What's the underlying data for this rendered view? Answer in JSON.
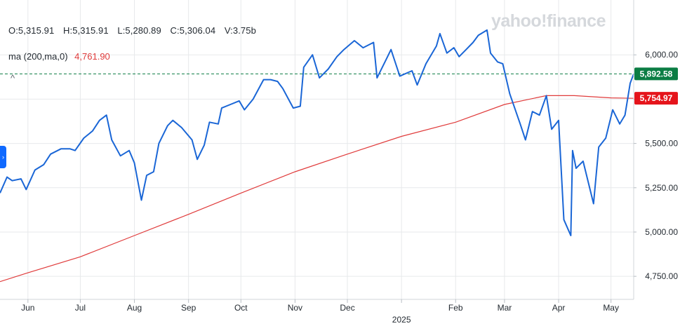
{
  "ohlc": {
    "open": "O:5,315.91",
    "high": "H:5,315.91",
    "low": "L:5,280.89",
    "close": "C:5,306.04",
    "volume": "V:3.75b"
  },
  "indicator": {
    "label": "ma (200,ma,0)",
    "value": "4,761.90"
  },
  "controls": {
    "collapse": "^",
    "side_tab": "›"
  },
  "watermark": "yahoo!finance",
  "last_price_badge": "5,892.58",
  "ma_badge": "5,754.97",
  "colors": {
    "price": "#1a66d6",
    "ma": "#e03b3b",
    "last_badge": "#0b7d44",
    "ma_badge": "#e5141b",
    "grid": "#e7e9eb"
  },
  "chart_data": {
    "type": "line",
    "title": "",
    "xlabel": "",
    "ylabel": "",
    "ylim": [
      4620,
      6270
    ],
    "y_ticks": [
      4750,
      5000,
      5250,
      5500,
      5750,
      6000
    ],
    "y_tick_labels": [
      "4,750.00",
      "5,000.00",
      "5,250.00",
      "5,500.00",
      "5,750.00",
      "6,000.00"
    ],
    "x_range": [
      "2024-05-16",
      "2025-05-14"
    ],
    "x_ticks": [
      {
        "date": "2024-06-01",
        "label": "Jun"
      },
      {
        "date": "2024-07-01",
        "label": "Jul"
      },
      {
        "date": "2024-08-01",
        "label": "Aug"
      },
      {
        "date": "2024-09-01",
        "label": "Sep"
      },
      {
        "date": "2024-10-01",
        "label": "Oct"
      },
      {
        "date": "2024-11-01",
        "label": "Nov"
      },
      {
        "date": "2024-12-01",
        "label": "Dec"
      },
      {
        "date": "2025-01-01",
        "label": "2025"
      },
      {
        "date": "2025-02-01",
        "label": "Feb"
      },
      {
        "date": "2025-03-01",
        "label": "Mar"
      },
      {
        "date": "2025-04-01",
        "label": "Apr"
      },
      {
        "date": "2025-05-01",
        "label": "May"
      }
    ],
    "reference_line": 5892.58,
    "series": [
      {
        "name": "",
        "color": "#1a66d6",
        "points": [
          [
            "2024-05-16",
            5220
          ],
          [
            "2024-05-20",
            5310
          ],
          [
            "2024-05-23",
            5290
          ],
          [
            "2024-05-28",
            5300
          ],
          [
            "2024-05-31",
            5240
          ],
          [
            "2024-06-05",
            5350
          ],
          [
            "2024-06-10",
            5380
          ],
          [
            "2024-06-14",
            5440
          ],
          [
            "2024-06-20",
            5470
          ],
          [
            "2024-06-25",
            5470
          ],
          [
            "2024-06-28",
            5460
          ],
          [
            "2024-07-03",
            5530
          ],
          [
            "2024-07-08",
            5570
          ],
          [
            "2024-07-12",
            5630
          ],
          [
            "2024-07-16",
            5660
          ],
          [
            "2024-07-19",
            5520
          ],
          [
            "2024-07-24",
            5430
          ],
          [
            "2024-07-29",
            5460
          ],
          [
            "2024-08-01",
            5390
          ],
          [
            "2024-08-05",
            5180
          ],
          [
            "2024-08-08",
            5320
          ],
          [
            "2024-08-12",
            5340
          ],
          [
            "2024-08-15",
            5500
          ],
          [
            "2024-08-20",
            5600
          ],
          [
            "2024-08-23",
            5630
          ],
          [
            "2024-08-28",
            5590
          ],
          [
            "2024-09-03",
            5520
          ],
          [
            "2024-09-06",
            5410
          ],
          [
            "2024-09-10",
            5490
          ],
          [
            "2024-09-13",
            5620
          ],
          [
            "2024-09-18",
            5610
          ],
          [
            "2024-09-20",
            5700
          ],
          [
            "2024-09-25",
            5720
          ],
          [
            "2024-09-30",
            5740
          ],
          [
            "2024-10-03",
            5690
          ],
          [
            "2024-10-08",
            5750
          ],
          [
            "2024-10-14",
            5860
          ],
          [
            "2024-10-18",
            5860
          ],
          [
            "2024-10-22",
            5850
          ],
          [
            "2024-10-25",
            5810
          ],
          [
            "2024-10-31",
            5700
          ],
          [
            "2024-11-04",
            5710
          ],
          [
            "2024-11-06",
            5930
          ],
          [
            "2024-11-11",
            6000
          ],
          [
            "2024-11-15",
            5870
          ],
          [
            "2024-11-20",
            5920
          ],
          [
            "2024-11-25",
            5990
          ],
          [
            "2024-11-29",
            6030
          ],
          [
            "2024-12-05",
            6080
          ],
          [
            "2024-12-10",
            6040
          ],
          [
            "2024-12-16",
            6070
          ],
          [
            "2024-12-18",
            5870
          ],
          [
            "2024-12-23",
            5970
          ],
          [
            "2024-12-26",
            6030
          ],
          [
            "2024-12-31",
            5880
          ],
          [
            "2025-01-07",
            5910
          ],
          [
            "2025-01-10",
            5830
          ],
          [
            "2025-01-15",
            5950
          ],
          [
            "2025-01-21",
            6050
          ],
          [
            "2025-01-23",
            6120
          ],
          [
            "2025-01-27",
            6010
          ],
          [
            "2025-01-31",
            6040
          ],
          [
            "2025-02-03",
            5990
          ],
          [
            "2025-02-07",
            6030
          ],
          [
            "2025-02-11",
            6070
          ],
          [
            "2025-02-14",
            6110
          ],
          [
            "2025-02-19",
            6140
          ],
          [
            "2025-02-21",
            6010
          ],
          [
            "2025-02-25",
            5960
          ],
          [
            "2025-02-28",
            5950
          ],
          [
            "2025-03-04",
            5780
          ],
          [
            "2025-03-10",
            5610
          ],
          [
            "2025-03-13",
            5520
          ],
          [
            "2025-03-17",
            5680
          ],
          [
            "2025-03-21",
            5660
          ],
          [
            "2025-03-25",
            5770
          ],
          [
            "2025-03-28",
            5580
          ],
          [
            "2025-04-01",
            5630
          ],
          [
            "2025-04-04",
            5070
          ],
          [
            "2025-04-08",
            4980
          ],
          [
            "2025-04-09",
            5460
          ],
          [
            "2025-04-11",
            5360
          ],
          [
            "2025-04-15",
            5400
          ],
          [
            "2025-04-21",
            5160
          ],
          [
            "2025-04-24",
            5480
          ],
          [
            "2025-04-28",
            5530
          ],
          [
            "2025-05-02",
            5690
          ],
          [
            "2025-05-06",
            5610
          ],
          [
            "2025-05-09",
            5660
          ],
          [
            "2025-05-12",
            5840
          ],
          [
            "2025-05-14",
            5892.58
          ]
        ]
      },
      {
        "name": "ma (200,ma,0)",
        "color": "#e03b3b",
        "points": [
          [
            "2024-05-16",
            4720
          ],
          [
            "2024-06-01",
            4770
          ],
          [
            "2024-07-01",
            4860
          ],
          [
            "2024-08-01",
            4980
          ],
          [
            "2024-09-01",
            5100
          ],
          [
            "2024-10-01",
            5220
          ],
          [
            "2024-11-01",
            5340
          ],
          [
            "2024-12-01",
            5440
          ],
          [
            "2025-01-01",
            5540
          ],
          [
            "2025-02-01",
            5620
          ],
          [
            "2025-03-01",
            5720
          ],
          [
            "2025-03-25",
            5770
          ],
          [
            "2025-04-10",
            5770
          ],
          [
            "2025-05-01",
            5757
          ],
          [
            "2025-05-14",
            5754.97
          ]
        ]
      }
    ]
  }
}
